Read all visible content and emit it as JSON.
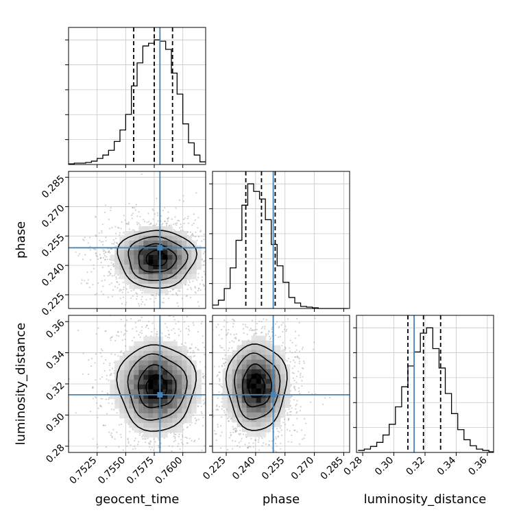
{
  "chart_data": {
    "type": "corner",
    "parameters": [
      {
        "name": "geocent_time",
        "label": "geocent_time",
        "lim": [
          0.75,
          0.762
        ],
        "ticks": [
          0.7525,
          0.755,
          0.7575,
          0.76
        ],
        "tick_labels": [
          "0.7525",
          "0.7550",
          "0.7575",
          "0.7600"
        ],
        "truth": 0.758,
        "quantiles": [
          0.7557,
          0.7575,
          0.7591
        ]
      },
      {
        "name": "phase",
        "label": "phase",
        "lim": [
          0.218,
          0.288
        ],
        "ticks": [
          0.225,
          0.24,
          0.255,
          0.27,
          0.285
        ],
        "tick_labels": [
          "0.225",
          "0.240",
          "0.255",
          "0.270",
          "0.285"
        ],
        "truth": 0.249,
        "quantiles": [
          0.235,
          0.243,
          0.25
        ]
      },
      {
        "name": "luminosity_distance",
        "label": "luminosity_distance",
        "lim": [
          0.276,
          0.364
        ],
        "ticks": [
          0.28,
          0.3,
          0.32,
          0.34,
          0.36
        ],
        "tick_labels": [
          "0.28",
          "0.30",
          "0.32",
          "0.34",
          "0.36"
        ],
        "truth": 0.313,
        "quantiles": [
          0.309,
          0.319,
          0.33
        ]
      }
    ],
    "histograms": [
      {
        "parameter": "geocent_time",
        "bin_edges": [
          0.75,
          0.7505,
          0.751,
          0.7515,
          0.752,
          0.7525,
          0.753,
          0.7535,
          0.754,
          0.7545,
          0.755,
          0.7555,
          0.756,
          0.7565,
          0.757,
          0.7575,
          0.758,
          0.7585,
          0.759,
          0.7595,
          0.76,
          0.7605,
          0.761,
          0.7615,
          0.762
        ],
        "counts": [
          1,
          2,
          2,
          3,
          5,
          9,
          14,
          21,
          34,
          51,
          74,
          116,
          150,
          175,
          179,
          184,
          182,
          170,
          135,
          104,
          60,
          32,
          14,
          4
        ]
      },
      {
        "parameter": "phase",
        "bin_edges": [
          0.218,
          0.221,
          0.224,
          0.227,
          0.23,
          0.233,
          0.236,
          0.239,
          0.242,
          0.245,
          0.248,
          0.251,
          0.254,
          0.257,
          0.26,
          0.263,
          0.266,
          0.269,
          0.272,
          0.275,
          0.278,
          0.281,
          0.284,
          0.287
        ],
        "counts": [
          5,
          12,
          29,
          59,
          99,
          150,
          181,
          170,
          159,
          129,
          93,
          62,
          38,
          16,
          8,
          3,
          2,
          1,
          0,
          0,
          0,
          0,
          0
        ]
      },
      {
        "parameter": "luminosity_distance",
        "bin_edges": [
          0.277,
          0.281,
          0.285,
          0.289,
          0.293,
          0.297,
          0.301,
          0.305,
          0.309,
          0.313,
          0.317,
          0.321,
          0.325,
          0.329,
          0.333,
          0.337,
          0.341,
          0.345,
          0.349,
          0.353,
          0.357,
          0.361,
          0.364
        ],
        "counts": [
          3,
          5,
          9,
          15,
          26,
          42,
          68,
          98,
          129,
          150,
          178,
          186,
          155,
          126,
          88,
          58,
          34,
          19,
          10,
          5,
          3,
          1
        ]
      }
    ],
    "scatter_panels": [
      {
        "x": "geocent_time",
        "y": "phase",
        "center": [
          0.7577,
          0.2435
        ],
        "sd": [
          0.00165,
          0.0072
        ],
        "rho": 0.0
      },
      {
        "x": "geocent_time",
        "y": "luminosity_distance",
        "center": [
          0.7577,
          0.318
        ],
        "sd": [
          0.00165,
          0.0135
        ],
        "rho": 0.0
      },
      {
        "x": "phase",
        "y": "luminosity_distance",
        "center": [
          0.2405,
          0.3185
        ],
        "sd": [
          0.0074,
          0.0135
        ],
        "rho": 0.0
      }
    ],
    "truth_color": "#4682b4",
    "line_color": "#000000",
    "grid": true,
    "legend": "none"
  }
}
